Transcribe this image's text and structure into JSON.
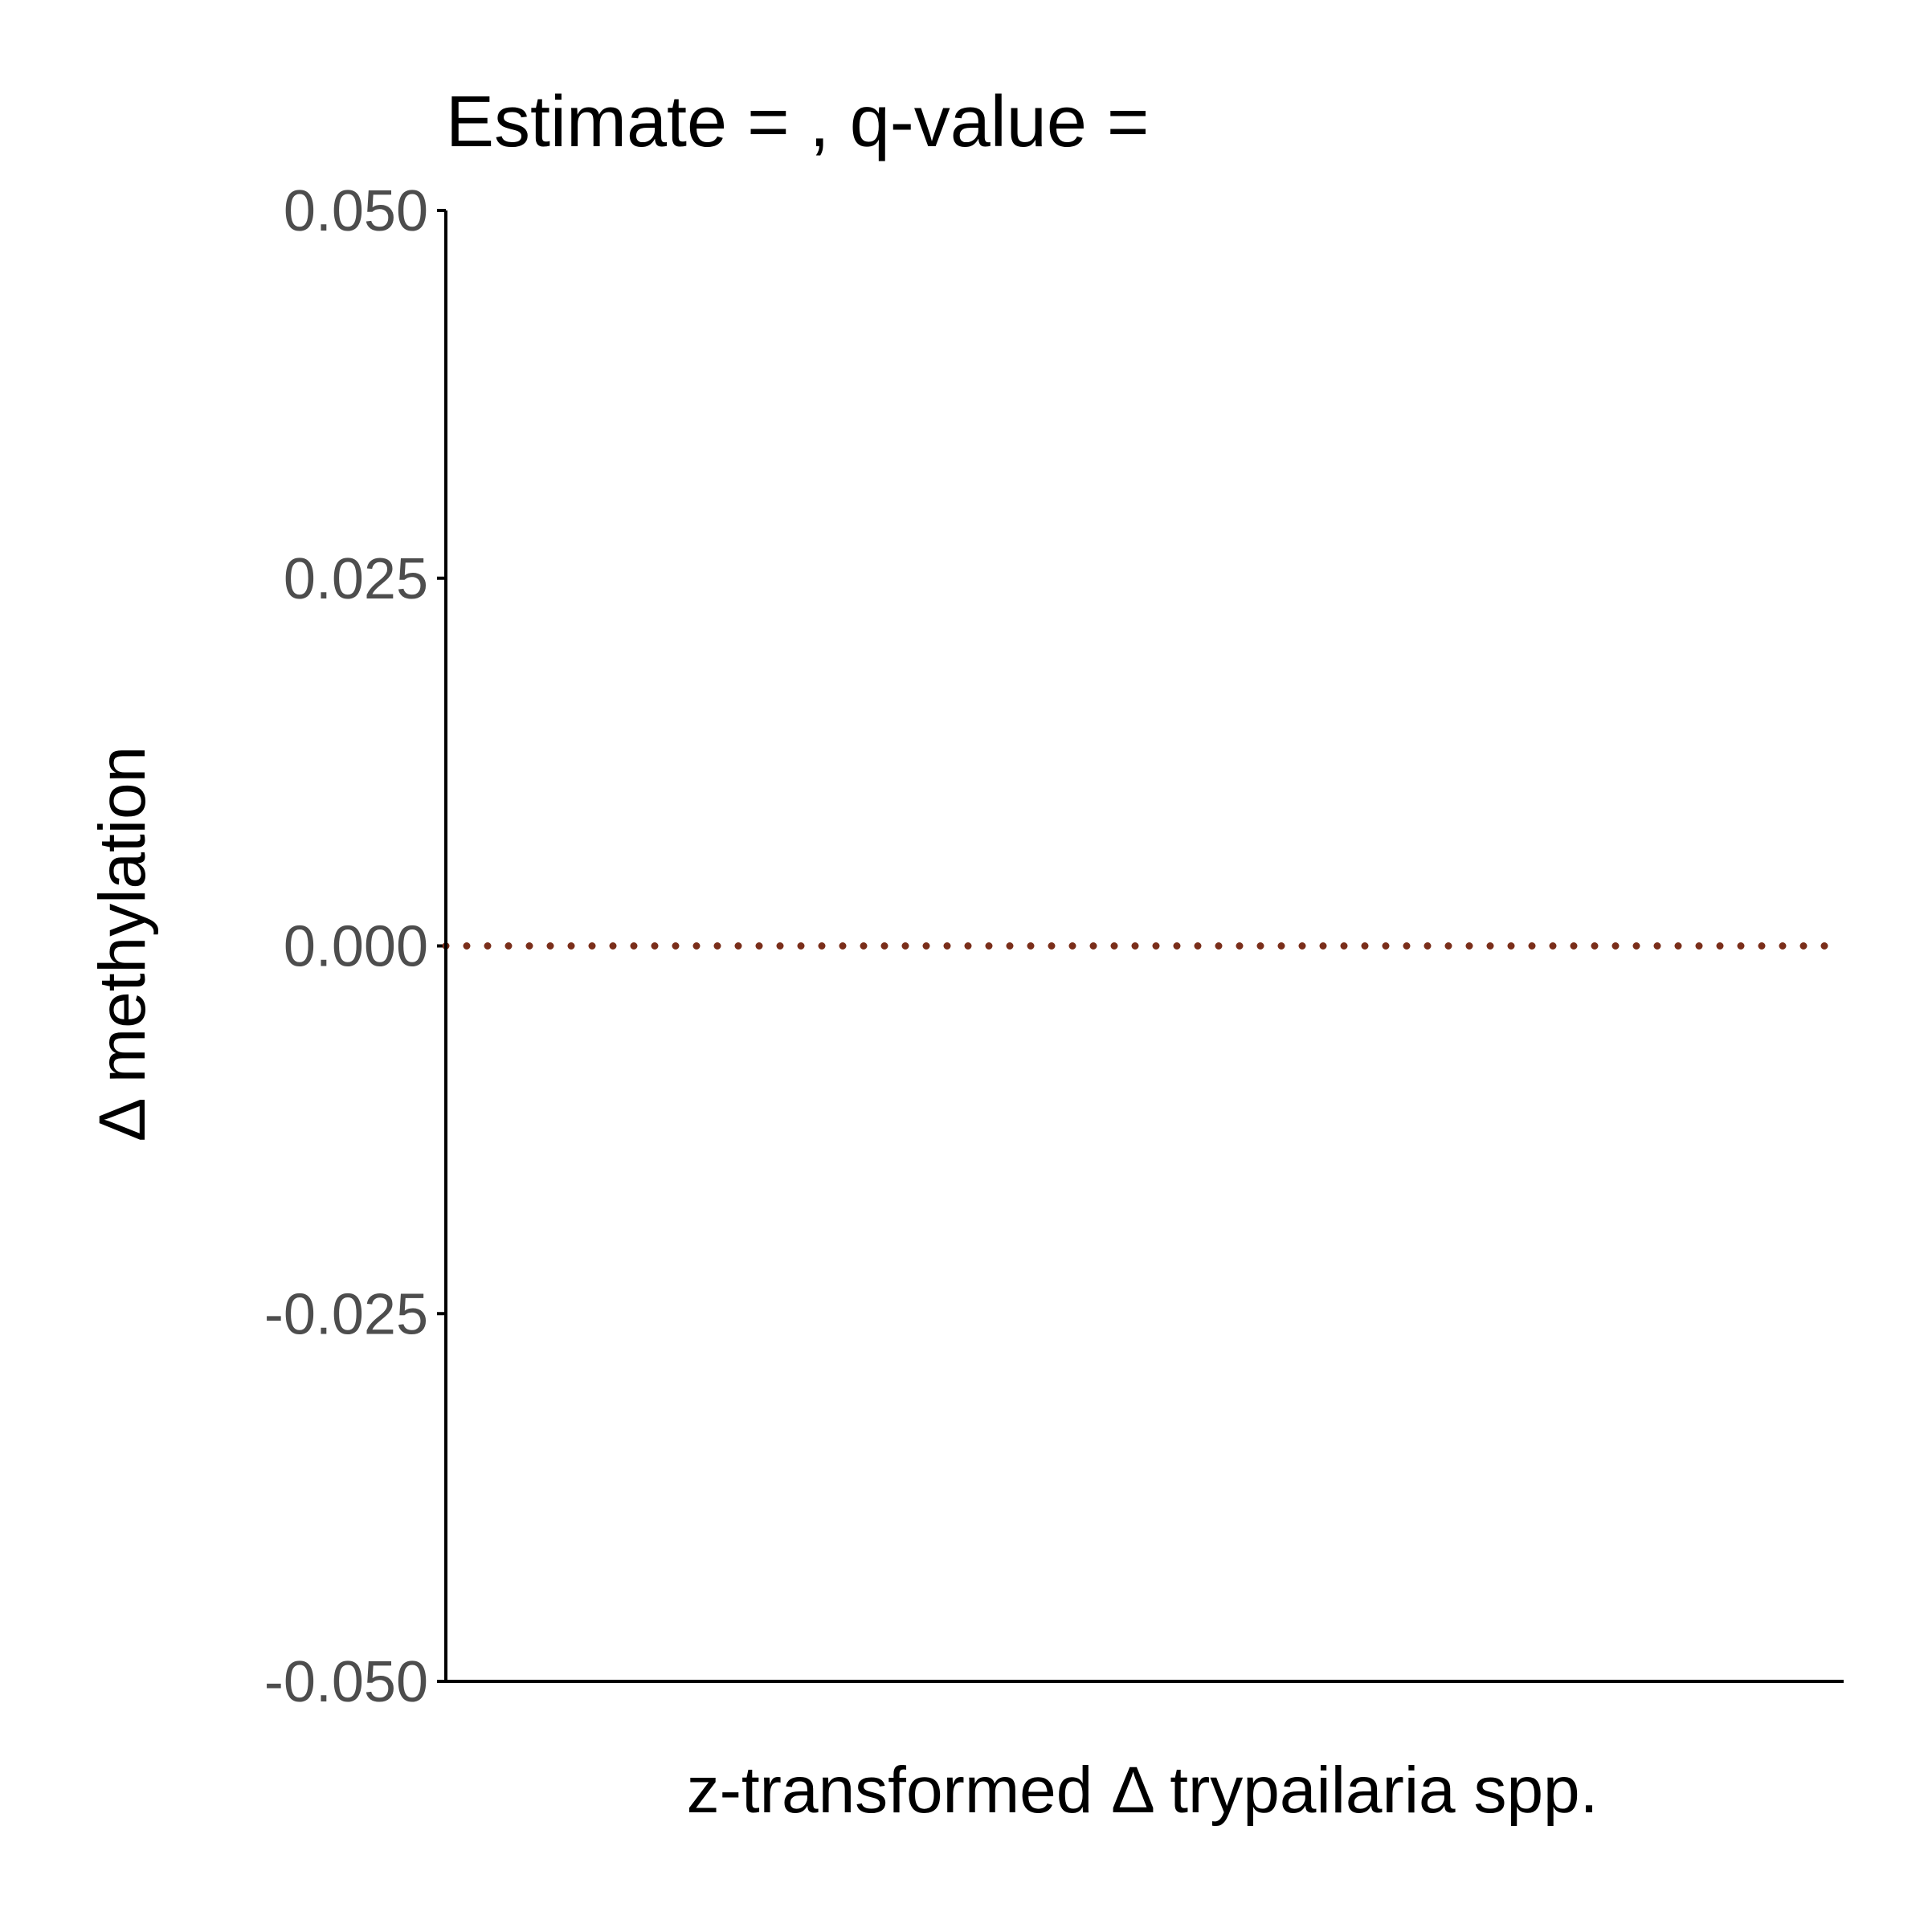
{
  "chart_data": {
    "type": "scatter",
    "title": "Estimate = , q-value =",
    "xlabel": "z-transformed Δ trypailaria spp.",
    "ylabel": "Δ methylation",
    "ylim": [
      -0.05,
      0.05
    ],
    "y_ticks": [
      {
        "value": -0.05,
        "label": "-0.050"
      },
      {
        "value": -0.025,
        "label": "-0.025"
      },
      {
        "value": 0.0,
        "label": "0.000"
      },
      {
        "value": 0.025,
        "label": "0.025"
      },
      {
        "value": 0.05,
        "label": "0.050"
      }
    ],
    "x_ticks": [],
    "series": [],
    "reference_line": {
      "y": 0,
      "style": "dotted",
      "color": "#7a2e1a"
    },
    "grid": false,
    "legend": "none",
    "colors": {
      "axis": "#000000",
      "tick_label": "#4d4d4d",
      "reference_line": "#7a2e1a"
    }
  }
}
